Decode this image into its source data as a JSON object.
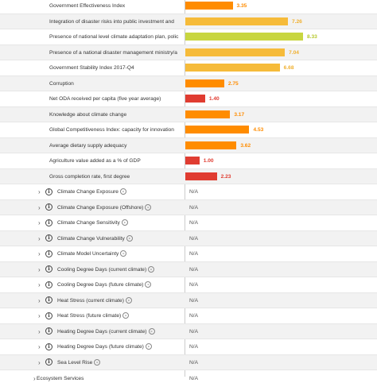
{
  "chart_data": {
    "type": "bar",
    "orientation": "horizontal",
    "xlim": [
      0,
      8.33
    ],
    "rows": [
      {
        "label": "Government Effectiveness Index",
        "value": 3.35,
        "color": "#ff8c00",
        "text_color": "#ff8c00"
      },
      {
        "label": "Integration of disaster risks into public investment and",
        "value": 7.26,
        "color": "#f6bb3a",
        "text_color": "#f0b030"
      },
      {
        "label": "Presence of national level climate adaptation plan, polic",
        "value": 8.33,
        "color": "#c8d640",
        "text_color": "#b6c82c"
      },
      {
        "label": "Presence of a national disaster management ministry/a",
        "value": 7.04,
        "color": "#f6bb3a",
        "text_color": "#f0b030"
      },
      {
        "label": "Government Stability Index 2017-Q4",
        "value": 6.68,
        "color": "#f6bb3a",
        "text_color": "#f0b030"
      },
      {
        "label": "Corruption",
        "value": 2.75,
        "color": "#ff8c00",
        "text_color": "#ff8c00"
      },
      {
        "label": "Net ODA received per capita (five year average)",
        "value": 1.4,
        "value_text": "1.40",
        "color": "#e03c31",
        "text_color": "#e03c31"
      },
      {
        "label": "Knowledge about climate change",
        "value": 3.17,
        "color": "#ff8c00",
        "text_color": "#ff8c00"
      },
      {
        "label": "Global Competitiveness Index: capacity for innovation",
        "value": 4.53,
        "color": "#ff8c00",
        "text_color": "#ff8c00"
      },
      {
        "label": "Average dietary supply adequacy",
        "value": 3.62,
        "color": "#ff8c00",
        "text_color": "#ff8c00"
      },
      {
        "label": "Agriculture value added as a % of GDP",
        "value": 1.0,
        "value_text": "1.00",
        "color": "#e03c31",
        "text_color": "#e03c31"
      },
      {
        "label": "Gross completion rate, first degree",
        "value": 2.23,
        "color": "#e03c31",
        "text_color": "#e03c31"
      }
    ],
    "na_rows": [
      "Climate Change Exposure",
      "Climate Change Exposure (Offshore)",
      "Climate Change Sensitivity",
      "Climate Change Vulnerability",
      "Climate Model Uncertainty",
      "Cooling Degree Days (current climate)",
      "Cooling Degree Days (future climate)",
      "Heat Stress (current climate)",
      "Heat Stress (future climate)",
      "Heating Degree Days (current climate)",
      "Heating Degree Days (future climate)",
      "Sea Level Rise"
    ],
    "na_text": "N/A",
    "section": {
      "label": "Ecosystem Services",
      "value": "N/A"
    }
  },
  "icons": {
    "expander": "chevron-right-icon",
    "info": "info-icon",
    "license": "creative-commons-icon"
  }
}
